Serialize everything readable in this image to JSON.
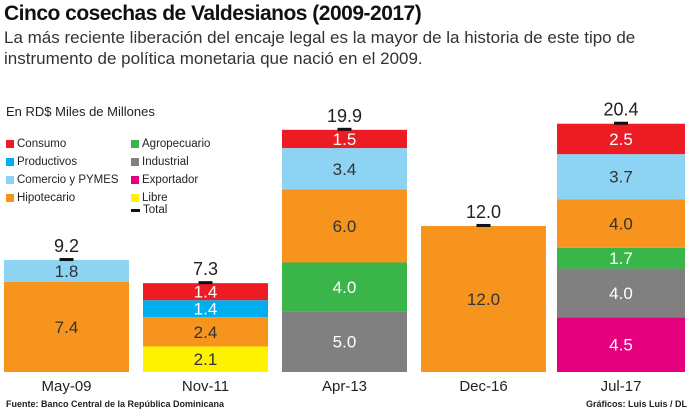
{
  "title": "Cinco cosechas de Valdesianos (2009-2017)",
  "subtitle": "La más reciente liberación del encaje legal es la mayor de la historia de este tipo de instrumento de política monetaria que nació en el 2009.",
  "source": "Fuente: Banco Central de la República Dominicana",
  "credit": "Gráficos: Luis Luis / DL",
  "chart_data": {
    "type": "bar",
    "stacked": true,
    "ylabel": "En RD$ Miles de Millones",
    "categories": [
      "May-09",
      "Nov-11",
      "Apr-13",
      "Dec-16",
      "Jul-17"
    ],
    "totals": [
      9.2,
      7.3,
      19.9,
      12.0,
      20.4
    ],
    "total_label": "Total",
    "legend_placement": "top-left",
    "series": [
      {
        "name": "Exportador",
        "color": "#e5007e",
        "values": [
          0,
          0,
          0,
          0,
          4.5
        ]
      },
      {
        "name": "Industrial",
        "color": "#808080",
        "values": [
          0,
          0,
          5.0,
          0,
          4.0
        ]
      },
      {
        "name": "Agropecuario",
        "color": "#39b54a",
        "values": [
          0,
          0,
          4.0,
          0,
          1.7
        ]
      },
      {
        "name": "Libre",
        "color": "#fff200",
        "values": [
          0,
          2.1,
          0,
          0,
          0
        ]
      },
      {
        "name": "Hipotecario",
        "color": "#f7941d",
        "values": [
          7.4,
          2.4,
          6.0,
          12.0,
          4.0
        ]
      },
      {
        "name": "Productivos",
        "color": "#00aeef",
        "values": [
          0,
          1.4,
          0,
          0,
          0
        ]
      },
      {
        "name": "Comercio y PYMES",
        "color": "#8dd3f3",
        "values": [
          1.8,
          0,
          3.4,
          0,
          3.7
        ]
      },
      {
        "name": "Consumo",
        "color": "#ed1c24",
        "values": [
          0,
          1.4,
          1.5,
          0,
          2.5
        ]
      }
    ],
    "legend_order": [
      "Consumo",
      "Productivos",
      "Comercio y PYMES",
      "Hipotecario",
      "Agropecuario",
      "Industrial",
      "Exportador",
      "Libre"
    ]
  }
}
